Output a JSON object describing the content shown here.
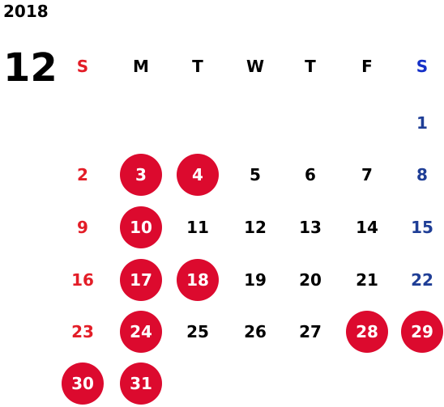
{
  "calendar": {
    "year": "2018",
    "month": "12",
    "weekdays": [
      "S",
      "M",
      "T",
      "W",
      "T",
      "F",
      "S"
    ],
    "highlight_color": "#dc0a2e",
    "sunday_color": "#e31d27",
    "saturday_color": "#1f3e96",
    "weeks": [
      [
        null,
        null,
        null,
        null,
        null,
        null,
        "1"
      ],
      [
        "2",
        "3",
        "4",
        "5",
        "6",
        "7",
        "8"
      ],
      [
        "9",
        "10",
        "11",
        "12",
        "13",
        "14",
        "15"
      ],
      [
        "16",
        "17",
        "18",
        "19",
        "20",
        "21",
        "22"
      ],
      [
        "23",
        "24",
        "25",
        "26",
        "27",
        "28",
        "29"
      ],
      [
        "30",
        "31",
        null,
        null,
        null,
        null,
        null
      ]
    ],
    "highlighted_days": [
      "3",
      "4",
      "10",
      "17",
      "18",
      "24",
      "28",
      "29",
      "30",
      "31"
    ]
  }
}
